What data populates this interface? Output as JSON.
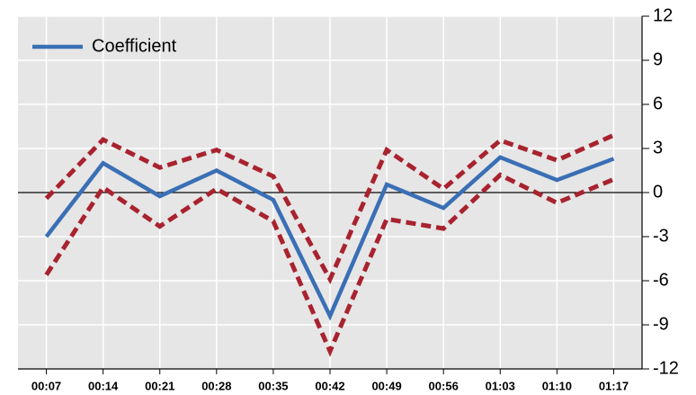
{
  "chart_data": {
    "type": "line",
    "categories": [
      "00:07",
      "00:14",
      "00:21",
      "00:28",
      "00:35",
      "00:42",
      "00:49",
      "00:56",
      "01:03",
      "01:10",
      "01:17"
    ],
    "series": [
      {
        "name": "Coefficient",
        "color": "#3a6fb5",
        "style": "solid",
        "values": [
          -3.0,
          2.0,
          -0.25,
          1.5,
          -0.5,
          -8.4,
          0.55,
          -1.05,
          2.4,
          0.85,
          2.3
        ]
      },
      {
        "color": "#a8232f",
        "style": "dashed",
        "values": [
          -0.4,
          3.6,
          1.7,
          2.9,
          1.1,
          -5.9,
          2.9,
          0.25,
          3.55,
          2.2,
          3.9
        ]
      },
      {
        "color": "#a8232f",
        "style": "dashed",
        "values": [
          -5.6,
          0.35,
          -2.3,
          0.25,
          -1.95,
          -10.8,
          -1.8,
          -2.45,
          1.2,
          -0.7,
          0.9
        ]
      }
    ],
    "ylim": [
      -12,
      12
    ],
    "yticks": [
      -12,
      -9,
      -6,
      -3,
      0,
      3,
      6,
      9,
      12
    ],
    "grid": true,
    "legend": "upper left",
    "y_axis_side": "right"
  }
}
